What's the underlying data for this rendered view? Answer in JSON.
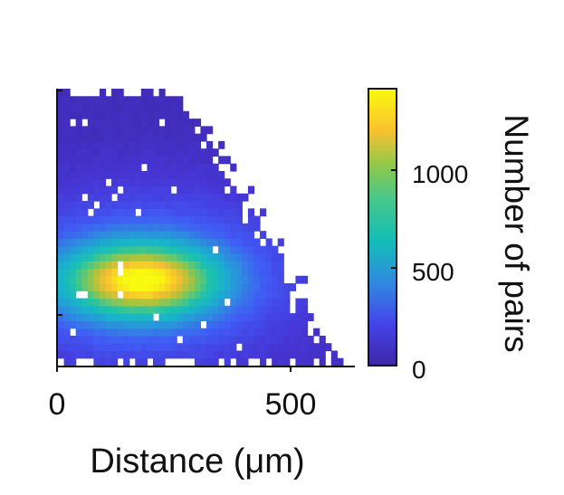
{
  "chart_data": {
    "type": "heatmap",
    "title": "",
    "xlabel": "Distance (μm)",
    "ylabel": "",
    "xlim": [
      0,
      640
    ],
    "x_ticks": [
      0,
      500
    ],
    "y_ticks": [],
    "bin_count_x": 50,
    "bin_count_y": 37,
    "hotspot": {
      "x": 180,
      "y_fraction": 0.31,
      "peak_count": 1300
    },
    "colorbar": {
      "label": "Number of pairs",
      "range": [
        0,
        1400
      ],
      "ticks": [
        0,
        500,
        1000
      ],
      "colormap": "parula"
    },
    "colors": {
      "low": "#3e26a8",
      "mid_low": "#2f8ae0",
      "mid": "#13beb7",
      "mid_high": "#8dc84c",
      "high": "#fac12e",
      "max": "#f9fb0e"
    }
  }
}
